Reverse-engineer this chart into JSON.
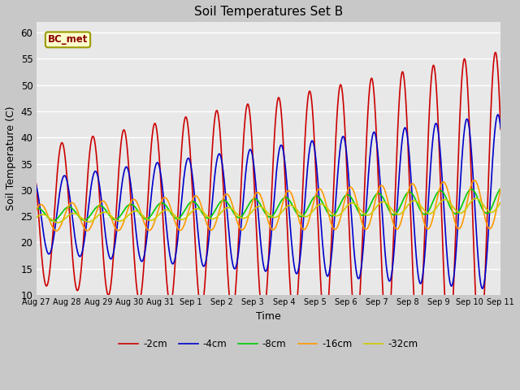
{
  "title": "Soil Temperatures Set B",
  "xlabel": "Time",
  "ylabel": "Soil Temperature (C)",
  "ylim": [
    10,
    62
  ],
  "yticks": [
    10,
    15,
    20,
    25,
    30,
    35,
    40,
    45,
    50,
    55,
    60
  ],
  "xtick_labels": [
    "Aug 27",
    "Aug 28",
    "Aug 29",
    "Aug 30",
    "Aug 31",
    "Sep 1",
    "Sep 2",
    "Sep 3",
    "Sep 4",
    "Sep 5",
    "Sep 6",
    "Sep 7",
    "Sep 8",
    "Sep 9",
    "Sep 10",
    "Sep 11"
  ],
  "label_box_text": "BC_met",
  "series": [
    {
      "label": "-2cm",
      "color": "#cc0000",
      "lw": 1.2
    },
    {
      "label": "-4cm",
      "color": "#0000cc",
      "lw": 1.2
    },
    {
      "label": "-8cm",
      "color": "#00cc00",
      "lw": 1.2
    },
    {
      "label": "-16cm",
      "color": "#ff9900",
      "lw": 1.2
    },
    {
      "label": "-32cm",
      "color": "#cccc00",
      "lw": 1.2
    }
  ]
}
